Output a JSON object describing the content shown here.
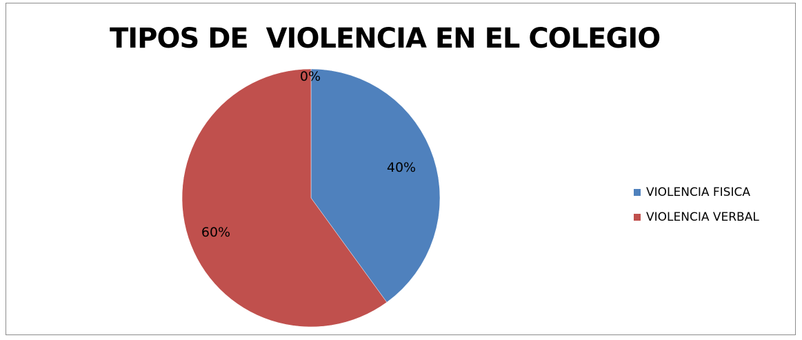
{
  "chart_data": {
    "type": "pie",
    "title": "TIPOS DE  VIOLENCIA EN EL COLEGIO",
    "categories": [
      "",
      "VIOLENCIA FISICA",
      "VIOLENCIA VERBAL"
    ],
    "values": [
      0,
      40,
      60
    ],
    "labels": [
      "0%",
      "40%",
      "60%"
    ],
    "colors": [
      "#4f81bd",
      "#4f81bd",
      "#c0504d"
    ],
    "legend": {
      "position": "right",
      "entries": [
        {
          "label": "VIOLENCIA FISICA",
          "color": "#4f81bd"
        },
        {
          "label": "VIOLENCIA VERBAL",
          "color": "#c0504d"
        }
      ]
    }
  }
}
